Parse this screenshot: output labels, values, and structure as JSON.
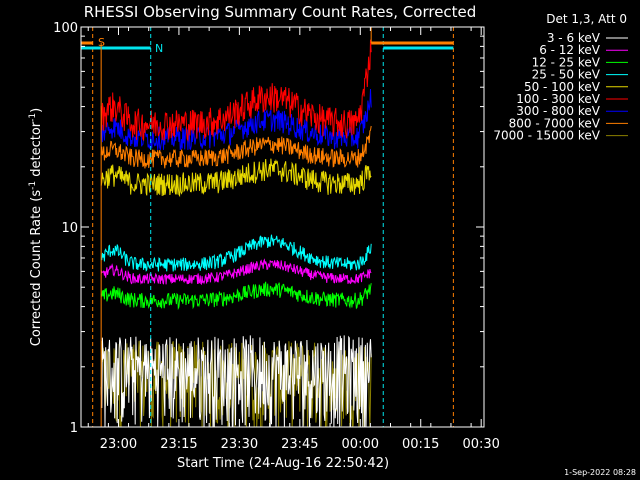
{
  "chart_data": {
    "type": "line",
    "title": "RHESSI Observing Summary Count Rates, Corrected",
    "xlabel": "Start Time (24-Aug-16 22:50:42)",
    "ylabel": "Corrected Count Rate (s",
    "ylabel_sup1": "-1",
    "ylabel_mid": " detector",
    "ylabel_sup2": "-1",
    "ylabel_end": ")",
    "yscale": "log",
    "ylim": [
      1,
      100
    ],
    "ytick_labels": [
      "1",
      "10",
      "100"
    ],
    "xlim_minutes_after_start": [
      0,
      100
    ],
    "xtick_labels": [
      "23:00",
      "23:15",
      "23:30",
      "23:45",
      "00:00",
      "00:15",
      "00:30"
    ],
    "legend_header": "Det 1,3, Att 0",
    "legend_position": "top-right",
    "footer_date": "1-Sep-2022 08:28",
    "flags": [
      {
        "label": "S",
        "color": "#ff7f00"
      },
      {
        "label": "N",
        "color": "#00e5ee"
      }
    ],
    "series": [
      {
        "name": "3 - 6 keV",
        "color": "#ffffff",
        "level": 1.6,
        "hump": 0.0,
        "noise": 0.9,
        "spike_end": 3.0
      },
      {
        "name": "6 - 12 keV",
        "color": "#ff00ff",
        "level": 5.5,
        "hump": 1.0,
        "noise": 0.7,
        "spike_end": 6.0
      },
      {
        "name": "12 - 25 keV",
        "color": "#00ff00",
        "level": 4.3,
        "hump": 0.6,
        "noise": 1.0,
        "spike_end": 5.0
      },
      {
        "name": "25 - 50 keV",
        "color": "#00ffff",
        "level": 6.5,
        "hump": 2.0,
        "noise": 0.9,
        "spike_end": 8.0
      },
      {
        "name": "50 - 100 keV",
        "color": "#e6d800",
        "level": 16.5,
        "hump": 3.0,
        "noise": 1.5,
        "spike_end": 20.0
      },
      {
        "name": "100 - 300 keV",
        "color": "#ff0000",
        "level": 33,
        "hump": 12.0,
        "noise": 2.0,
        "spike_end": 80.0
      },
      {
        "name": "300 - 800 keV",
        "color": "#0000ff",
        "level": 28,
        "hump": 6.5,
        "noise": 1.5,
        "spike_end": 45.0
      },
      {
        "name": "800 - 7000 keV",
        "color": "#ff7f00",
        "level": 22,
        "hump": 4.0,
        "noise": 1.2,
        "spike_end": 30.0
      },
      {
        "name": "7000 - 15000 keV",
        "color": "#8b8000",
        "level": 1.5,
        "hump": 0.0,
        "noise": 0.6,
        "spike_end": 2.0
      }
    ]
  }
}
